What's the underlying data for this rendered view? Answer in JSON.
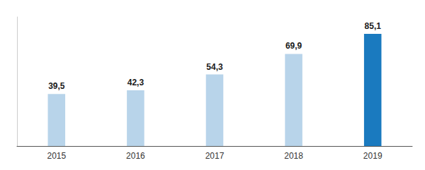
{
  "chart_data": {
    "type": "bar",
    "categories": [
      "2015",
      "2016",
      "2017",
      "2018",
      "2019"
    ],
    "values": [
      39.5,
      42.3,
      54.3,
      69.9,
      85.1
    ],
    "value_labels": [
      "39,5",
      "42,3",
      "54,3",
      "69,9",
      "85,1"
    ],
    "colors": [
      "#b8d4ea",
      "#b8d4ea",
      "#b8d4ea",
      "#b8d4ea",
      "#1a7abf"
    ],
    "ylim": [
      0,
      98
    ],
    "data_labels": true,
    "grid": false,
    "tick_labels": "x"
  }
}
